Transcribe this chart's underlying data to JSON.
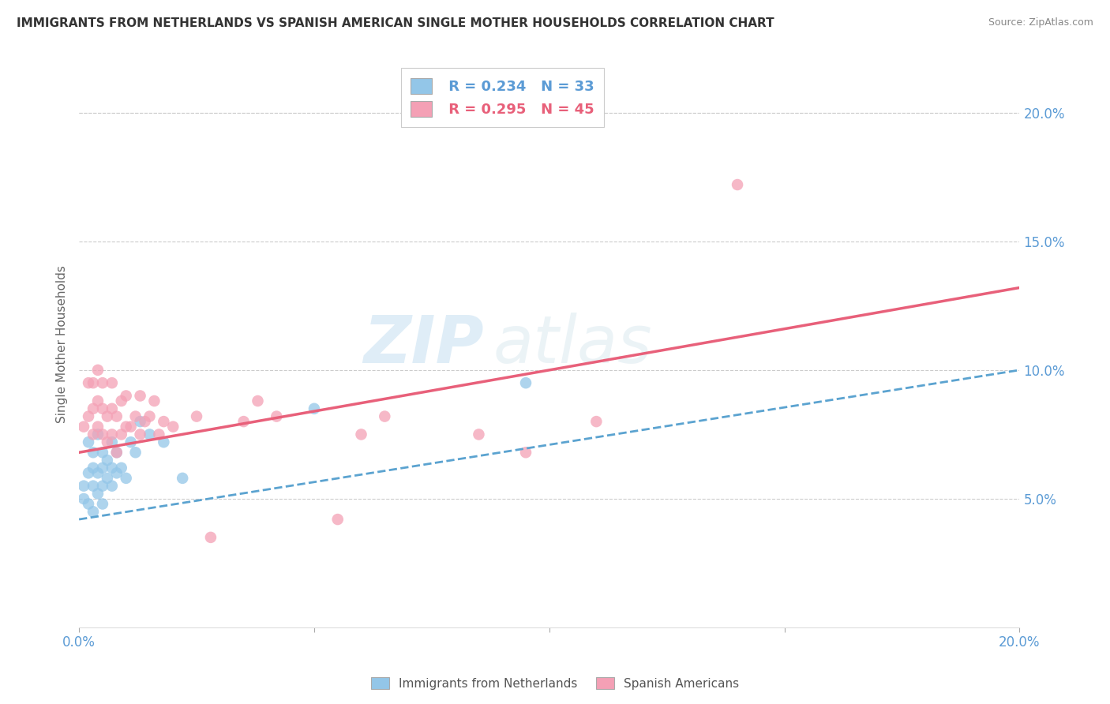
{
  "title": "IMMIGRANTS FROM NETHERLANDS VS SPANISH AMERICAN SINGLE MOTHER HOUSEHOLDS CORRELATION CHART",
  "source": "Source: ZipAtlas.com",
  "ylabel": "Single Mother Households",
  "xlim": [
    0.0,
    0.2
  ],
  "ylim": [
    0.0,
    0.22
  ],
  "x_ticks": [
    0.0,
    0.05,
    0.1,
    0.15,
    0.2
  ],
  "x_tick_labels": [
    "0.0%",
    "",
    "",
    "",
    "20.0%"
  ],
  "y_ticks": [
    0.05,
    0.1,
    0.15,
    0.2
  ],
  "y_tick_labels": [
    "5.0%",
    "10.0%",
    "15.0%",
    "20.0%"
  ],
  "legend_r1": "R = 0.234",
  "legend_n1": "N = 33",
  "legend_r2": "R = 0.295",
  "legend_n2": "N = 45",
  "color_blue": "#93c6e8",
  "color_pink": "#f4a0b5",
  "color_blue_line": "#5ba3d0",
  "color_pink_line": "#e8607a",
  "watermark": "ZIPatlas",
  "legend_label1": "Immigrants from Netherlands",
  "legend_label2": "Spanish Americans",
  "blue_x": [
    0.001,
    0.001,
    0.002,
    0.002,
    0.002,
    0.003,
    0.003,
    0.003,
    0.003,
    0.004,
    0.004,
    0.004,
    0.005,
    0.005,
    0.005,
    0.005,
    0.006,
    0.006,
    0.007,
    0.007,
    0.007,
    0.008,
    0.008,
    0.009,
    0.01,
    0.011,
    0.012,
    0.013,
    0.015,
    0.018,
    0.022,
    0.05,
    0.095
  ],
  "blue_y": [
    0.055,
    0.05,
    0.06,
    0.048,
    0.072,
    0.045,
    0.055,
    0.062,
    0.068,
    0.052,
    0.06,
    0.075,
    0.048,
    0.055,
    0.062,
    0.068,
    0.058,
    0.065,
    0.055,
    0.062,
    0.072,
    0.06,
    0.068,
    0.062,
    0.058,
    0.072,
    0.068,
    0.08,
    0.075,
    0.072,
    0.058,
    0.085,
    0.095
  ],
  "pink_x": [
    0.001,
    0.002,
    0.002,
    0.003,
    0.003,
    0.003,
    0.004,
    0.004,
    0.004,
    0.005,
    0.005,
    0.005,
    0.006,
    0.006,
    0.007,
    0.007,
    0.007,
    0.008,
    0.008,
    0.009,
    0.009,
    0.01,
    0.01,
    0.011,
    0.012,
    0.013,
    0.013,
    0.014,
    0.015,
    0.016,
    0.017,
    0.018,
    0.02,
    0.025,
    0.028,
    0.035,
    0.038,
    0.042,
    0.055,
    0.06,
    0.065,
    0.085,
    0.095,
    0.11,
    0.14
  ],
  "pink_y": [
    0.078,
    0.082,
    0.095,
    0.075,
    0.085,
    0.095,
    0.078,
    0.088,
    0.1,
    0.075,
    0.085,
    0.095,
    0.072,
    0.082,
    0.075,
    0.085,
    0.095,
    0.068,
    0.082,
    0.075,
    0.088,
    0.078,
    0.09,
    0.078,
    0.082,
    0.075,
    0.09,
    0.08,
    0.082,
    0.088,
    0.075,
    0.08,
    0.078,
    0.082,
    0.035,
    0.08,
    0.088,
    0.082,
    0.042,
    0.075,
    0.082,
    0.075,
    0.068,
    0.08,
    0.172
  ],
  "blue_line_start_y": 0.042,
  "blue_line_end_y": 0.1,
  "pink_line_start_y": 0.068,
  "pink_line_end_y": 0.132
}
